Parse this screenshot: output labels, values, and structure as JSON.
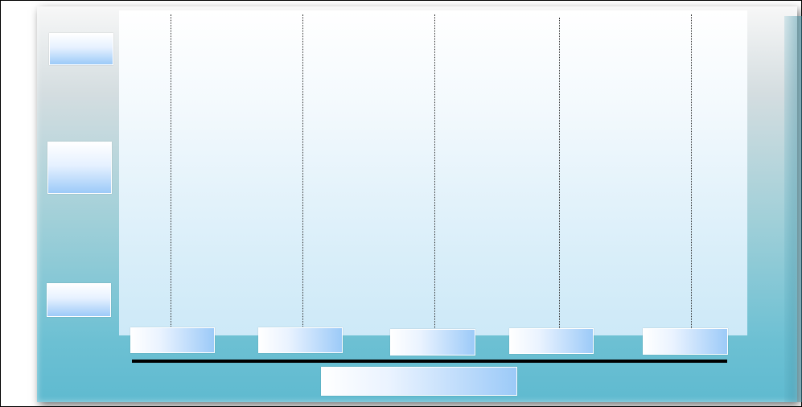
{
  "diagram": {
    "columns": [
      {
        "label": ""
      },
      {
        "label": ""
      },
      {
        "label": ""
      },
      {
        "label": ""
      },
      {
        "label": ""
      }
    ],
    "rows": [
      {
        "label": ""
      },
      {
        "label": ""
      },
      {
        "label": ""
      }
    ],
    "axis_label": "",
    "colors": {
      "frame_border": "#000000",
      "panel_top": "#f7f7f7",
      "panel_bottom": "#5fbad0",
      "plot_top": "#ffffff",
      "plot_bottom": "#cde9f8",
      "box_accent": "#9ccaf8",
      "lane_line": "#333333",
      "axis_line": "#000000"
    }
  }
}
